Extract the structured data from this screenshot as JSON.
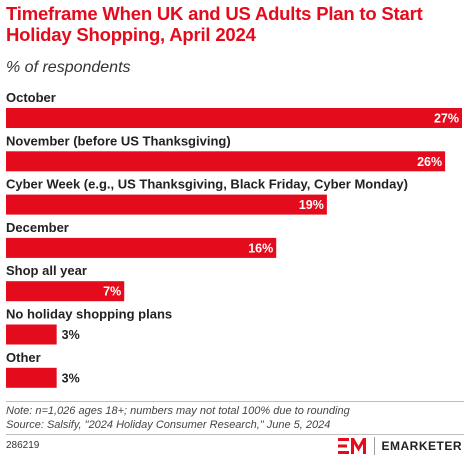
{
  "header": {
    "title": "Timeframe When UK and US Adults Plan to Start Holiday Shopping, April 2024",
    "subtitle": "% of respondents"
  },
  "chart_data": {
    "type": "bar",
    "orientation": "horizontal",
    "categories": [
      "October",
      "November (before US Thanksgiving)",
      "Cyber Week (e.g., US Thanksgiving, Black Friday, Cyber Monday)",
      "December",
      "Shop all year",
      "No holiday shopping plans",
      "Other"
    ],
    "values": [
      27,
      26,
      19,
      16,
      7,
      3,
      3
    ],
    "value_labels": [
      "27%",
      "26%",
      "19%",
      "16%",
      "7%",
      "3%",
      "3%"
    ],
    "unit": "%",
    "bar_color": "#e30b1c",
    "xlim": [
      0,
      27
    ],
    "grid": false,
    "legend": "none"
  },
  "footer": {
    "note": "Note: n=1,026 ages 18+; numbers may not total 100% due to rounding",
    "source": "Source: Salsify, \"2024 Holiday Consumer Research,\" June 5, 2024",
    "chart_id": "286219",
    "brand": "EMARKETER",
    "brand_icon": "em-logo-icon"
  }
}
